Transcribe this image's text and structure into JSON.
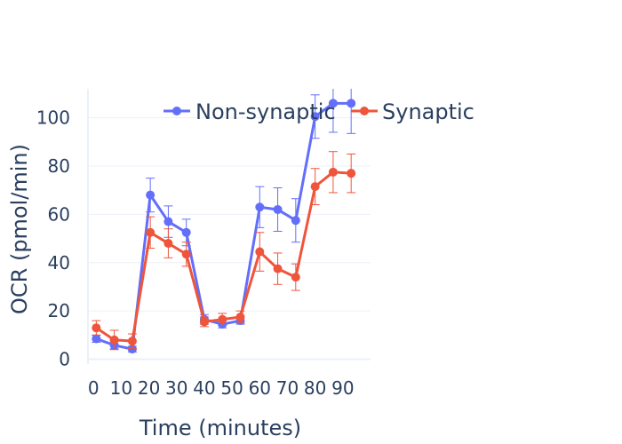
{
  "chart_data": {
    "type": "line",
    "title": "",
    "xlabel": "Time (minutes)",
    "ylabel": "OCR (pmol/min)",
    "xlim": [
      -2,
      100
    ],
    "ylim": [
      -2,
      112
    ],
    "x_ticks": [
      0,
      10,
      20,
      30,
      40,
      50,
      60,
      70,
      80,
      90
    ],
    "y_ticks": [
      0,
      20,
      40,
      60,
      80,
      100
    ],
    "grid": true,
    "legend_placement": "top",
    "series": [
      {
        "name": "Non-synaptic",
        "color": "#636efa",
        "x": [
          1,
          7.5,
          14,
          20.5,
          27,
          33.5,
          40,
          46.5,
          53,
          60,
          66.5,
          73,
          80,
          86.5,
          93
        ],
        "y": [
          8.5,
          5.8,
          4.2,
          68,
          57,
          52.5,
          16.5,
          14.5,
          16,
          63,
          62,
          57.5,
          100.5,
          106,
          106
        ],
        "error": [
          1.5,
          1.5,
          1.2,
          7,
          6.5,
          5.5,
          2,
          1.5,
          1.5,
          8.5,
          9,
          9,
          9,
          12,
          12.5
        ]
      },
      {
        "name": "Synaptic",
        "color": "#ef553b",
        "x": [
          1,
          7.5,
          14,
          20.5,
          27,
          33.5,
          40,
          46.5,
          53,
          60,
          66.5,
          73,
          80,
          86.5,
          93
        ],
        "y": [
          13,
          8,
          7.5,
          52.5,
          48,
          43.5,
          15.5,
          16.5,
          17.5,
          44.5,
          37.5,
          34,
          71.5,
          77.5,
          77
        ],
        "error": [
          3,
          4,
          3,
          6.5,
          6,
          5,
          2,
          2.5,
          2.5,
          8,
          6.5,
          5.5,
          7.5,
          8.5,
          8
        ]
      }
    ]
  }
}
